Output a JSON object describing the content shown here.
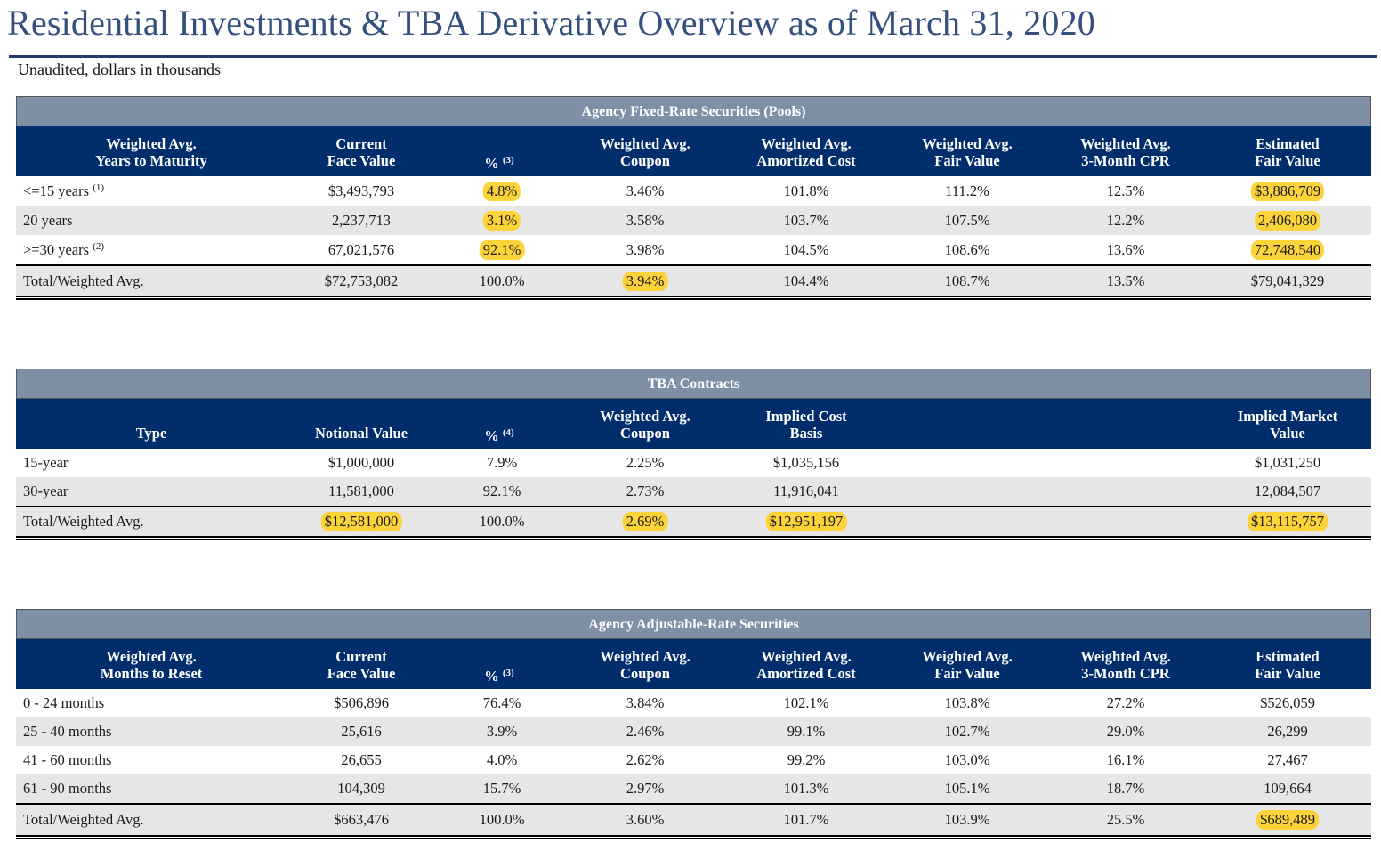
{
  "title": "Residential Investments & TBA Derivative Overview as of March 31, 2020",
  "subtitle": "Unaudited, dollars in thousands",
  "highlight_color": "#fcd43a",
  "header_color": "#002d6b",
  "section_color": "#7f8fa6",
  "fixed": {
    "section": "Agency Fixed-Rate Securities (Pools)",
    "headers": [
      {
        "l1": "Weighted Avg.",
        "l2": "Years to Maturity"
      },
      {
        "l1": "Current",
        "l2": "Face Value"
      },
      {
        "l1": "",
        "l2": "%",
        "sup": "(3)"
      },
      {
        "l1": "Weighted Avg.",
        "l2": "Coupon"
      },
      {
        "l1": "Weighted Avg.",
        "l2": "Amortized Cost"
      },
      {
        "l1": "Weighted Avg.",
        "l2": "Fair Value"
      },
      {
        "l1": "Weighted Avg.",
        "l2": "3-Month CPR"
      },
      {
        "l1": "Estimated",
        "l2": "Fair Value"
      }
    ],
    "rows": [
      {
        "label": "<=15 years",
        "sup": "(1)",
        "face": "$3,493,793",
        "pct": "4.8%",
        "coupon": "3.46%",
        "amort": "101.8%",
        "fair": "111.2%",
        "cpr": "12.5%",
        "est": "$3,886,709"
      },
      {
        "label": "20 years",
        "face": "2,237,713",
        "pct": "3.1%",
        "coupon": "3.58%",
        "amort": "103.7%",
        "fair": "107.5%",
        "cpr": "12.2%",
        "est": "2,406,080"
      },
      {
        "label": ">=30 years",
        "sup": "(2)",
        "face": "67,021,576",
        "pct": "92.1%",
        "coupon": "3.98%",
        "amort": "104.5%",
        "fair": "108.6%",
        "cpr": "13.6%",
        "est": "72,748,540"
      }
    ],
    "total": {
      "label": "Total/Weighted Avg.",
      "face": "$72,753,082",
      "pct": "100.0%",
      "coupon": "3.94%",
      "amort": "104.4%",
      "fair": "108.7%",
      "cpr": "13.5%",
      "est": "$79,041,329"
    }
  },
  "tba": {
    "section": "TBA Contracts",
    "headers": [
      {
        "l1": "",
        "l2": "Type"
      },
      {
        "l1": "",
        "l2": "Notional Value"
      },
      {
        "l1": "",
        "l2": "%",
        "sup": "(4)"
      },
      {
        "l1": "Weighted Avg.",
        "l2": "Coupon"
      },
      {
        "l1": "Implied Cost",
        "l2": "Basis"
      },
      {
        "l1": "Implied Market",
        "l2": "Value"
      }
    ],
    "rows": [
      {
        "label": "15-year",
        "notional": "$1,000,000",
        "pct": "7.9%",
        "coupon": "2.25%",
        "cost": "$1,035,156",
        "market": "$1,031,250"
      },
      {
        "label": "30-year",
        "notional": "11,581,000",
        "pct": "92.1%",
        "coupon": "2.73%",
        "cost": "11,916,041",
        "market": "12,084,507"
      }
    ],
    "total": {
      "label": "Total/Weighted Avg.",
      "notional": "$12,581,000",
      "pct": "100.0%",
      "coupon": "2.69%",
      "cost": "$12,951,197",
      "market": "$13,115,757"
    }
  },
  "adjustable": {
    "section": "Agency Adjustable-Rate Securities",
    "headers": [
      {
        "l1": "Weighted Avg.",
        "l2": "Months to Reset"
      },
      {
        "l1": "Current",
        "l2": "Face Value"
      },
      {
        "l1": "",
        "l2": "%",
        "sup": "(3)"
      },
      {
        "l1": "Weighted Avg.",
        "l2": "Coupon"
      },
      {
        "l1": "Weighted Avg.",
        "l2": "Amortized Cost"
      },
      {
        "l1": "Weighted Avg.",
        "l2": "Fair Value"
      },
      {
        "l1": "Weighted Avg.",
        "l2": "3-Month CPR"
      },
      {
        "l1": "Estimated",
        "l2": "Fair Value"
      }
    ],
    "rows": [
      {
        "label": "0 - 24 months",
        "face": "$506,896",
        "pct": "76.4%",
        "coupon": "3.84%",
        "amort": "102.1%",
        "fair": "103.8%",
        "cpr": "27.2%",
        "est": "$526,059"
      },
      {
        "label": "25 - 40 months",
        "face": "25,616",
        "pct": "3.9%",
        "coupon": "2.46%",
        "amort": "99.1%",
        "fair": "102.7%",
        "cpr": "29.0%",
        "est": "26,299"
      },
      {
        "label": "41 - 60 months",
        "face": "26,655",
        "pct": "4.0%",
        "coupon": "2.62%",
        "amort": "99.2%",
        "fair": "103.0%",
        "cpr": "16.1%",
        "est": "27,467"
      },
      {
        "label": "61 - 90 months",
        "face": "104,309",
        "pct": "15.7%",
        "coupon": "2.97%",
        "amort": "101.3%",
        "fair": "105.1%",
        "cpr": "18.7%",
        "est": "109,664"
      }
    ],
    "total": {
      "label": "Total/Weighted Avg.",
      "face": "$663,476",
      "pct": "100.0%",
      "coupon": "3.60%",
      "amort": "101.7%",
      "fair": "103.9%",
      "cpr": "25.5%",
      "est": "$689,489"
    }
  }
}
